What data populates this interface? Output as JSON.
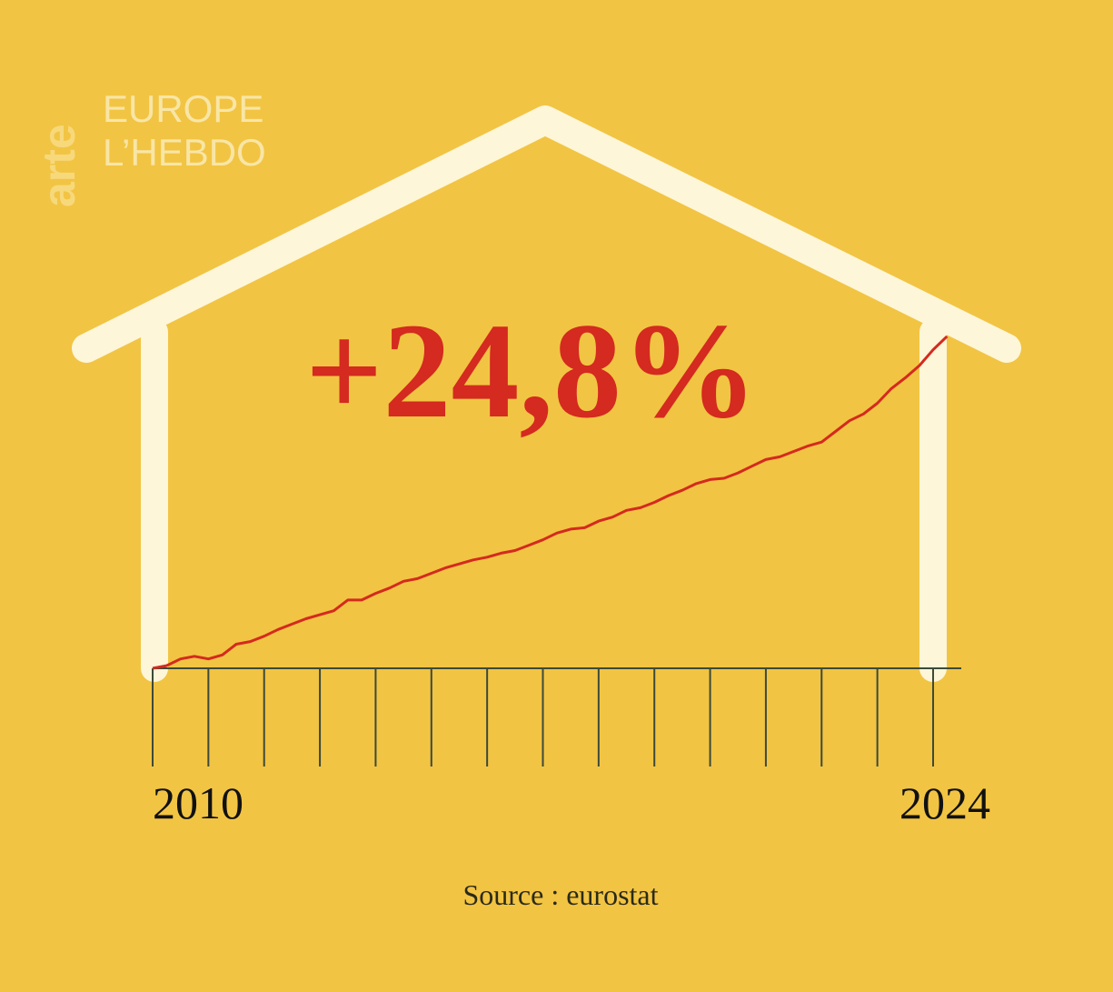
{
  "logo": {
    "brand": "arte",
    "line1": "EUROPE",
    "line2": "L’HEBDO"
  },
  "chart_data": {
    "type": "line",
    "annotation": "+24,8%",
    "source": "Source : eurostat",
    "color": "#d42a1f",
    "x": [
      2010,
      2010.25,
      2010.5,
      2010.75,
      2011,
      2011.25,
      2011.5,
      2011.75,
      2012,
      2012.25,
      2012.5,
      2012.75,
      2013,
      2013.25,
      2013.5,
      2013.75,
      2014,
      2014.25,
      2014.5,
      2014.75,
      2015,
      2015.25,
      2015.5,
      2015.75,
      2016,
      2016.25,
      2016.5,
      2016.75,
      2017,
      2017.25,
      2017.5,
      2017.75,
      2018,
      2018.25,
      2018.5,
      2018.75,
      2019,
      2019.25,
      2019.5,
      2019.75,
      2020,
      2020.25,
      2020.5,
      2020.75,
      2021,
      2021.25,
      2021.5,
      2021.75,
      2022,
      2022.25,
      2022.5,
      2022.75,
      2023,
      2023.25,
      2023.5,
      2023.75,
      2024,
      2024.25
    ],
    "values": [
      0,
      0.2,
      0.7,
      0.9,
      0.7,
      1.0,
      1.8,
      2.0,
      2.4,
      2.9,
      3.3,
      3.7,
      4.0,
      4.3,
      5.1,
      5.1,
      5.6,
      6.0,
      6.5,
      6.7,
      7.1,
      7.5,
      7.8,
      8.1,
      8.3,
      8.6,
      8.8,
      9.2,
      9.6,
      10.1,
      10.4,
      10.5,
      11.0,
      11.3,
      11.8,
      12.0,
      12.4,
      12.9,
      13.3,
      13.8,
      14.1,
      14.2,
      14.6,
      15.1,
      15.6,
      15.8,
      16.2,
      16.6,
      16.9,
      17.7,
      18.5,
      19.0,
      19.8,
      20.9,
      21.7,
      22.6,
      23.8,
      24.8
    ],
    "xlim": [
      2010,
      2024
    ],
    "xticks": [
      2010,
      2024
    ],
    "xminorticks": [
      2011,
      2012,
      2013,
      2014,
      2015,
      2016,
      2017,
      2018,
      2019,
      2020,
      2021,
      2022,
      2023
    ],
    "ylim": [
      0,
      25
    ]
  }
}
